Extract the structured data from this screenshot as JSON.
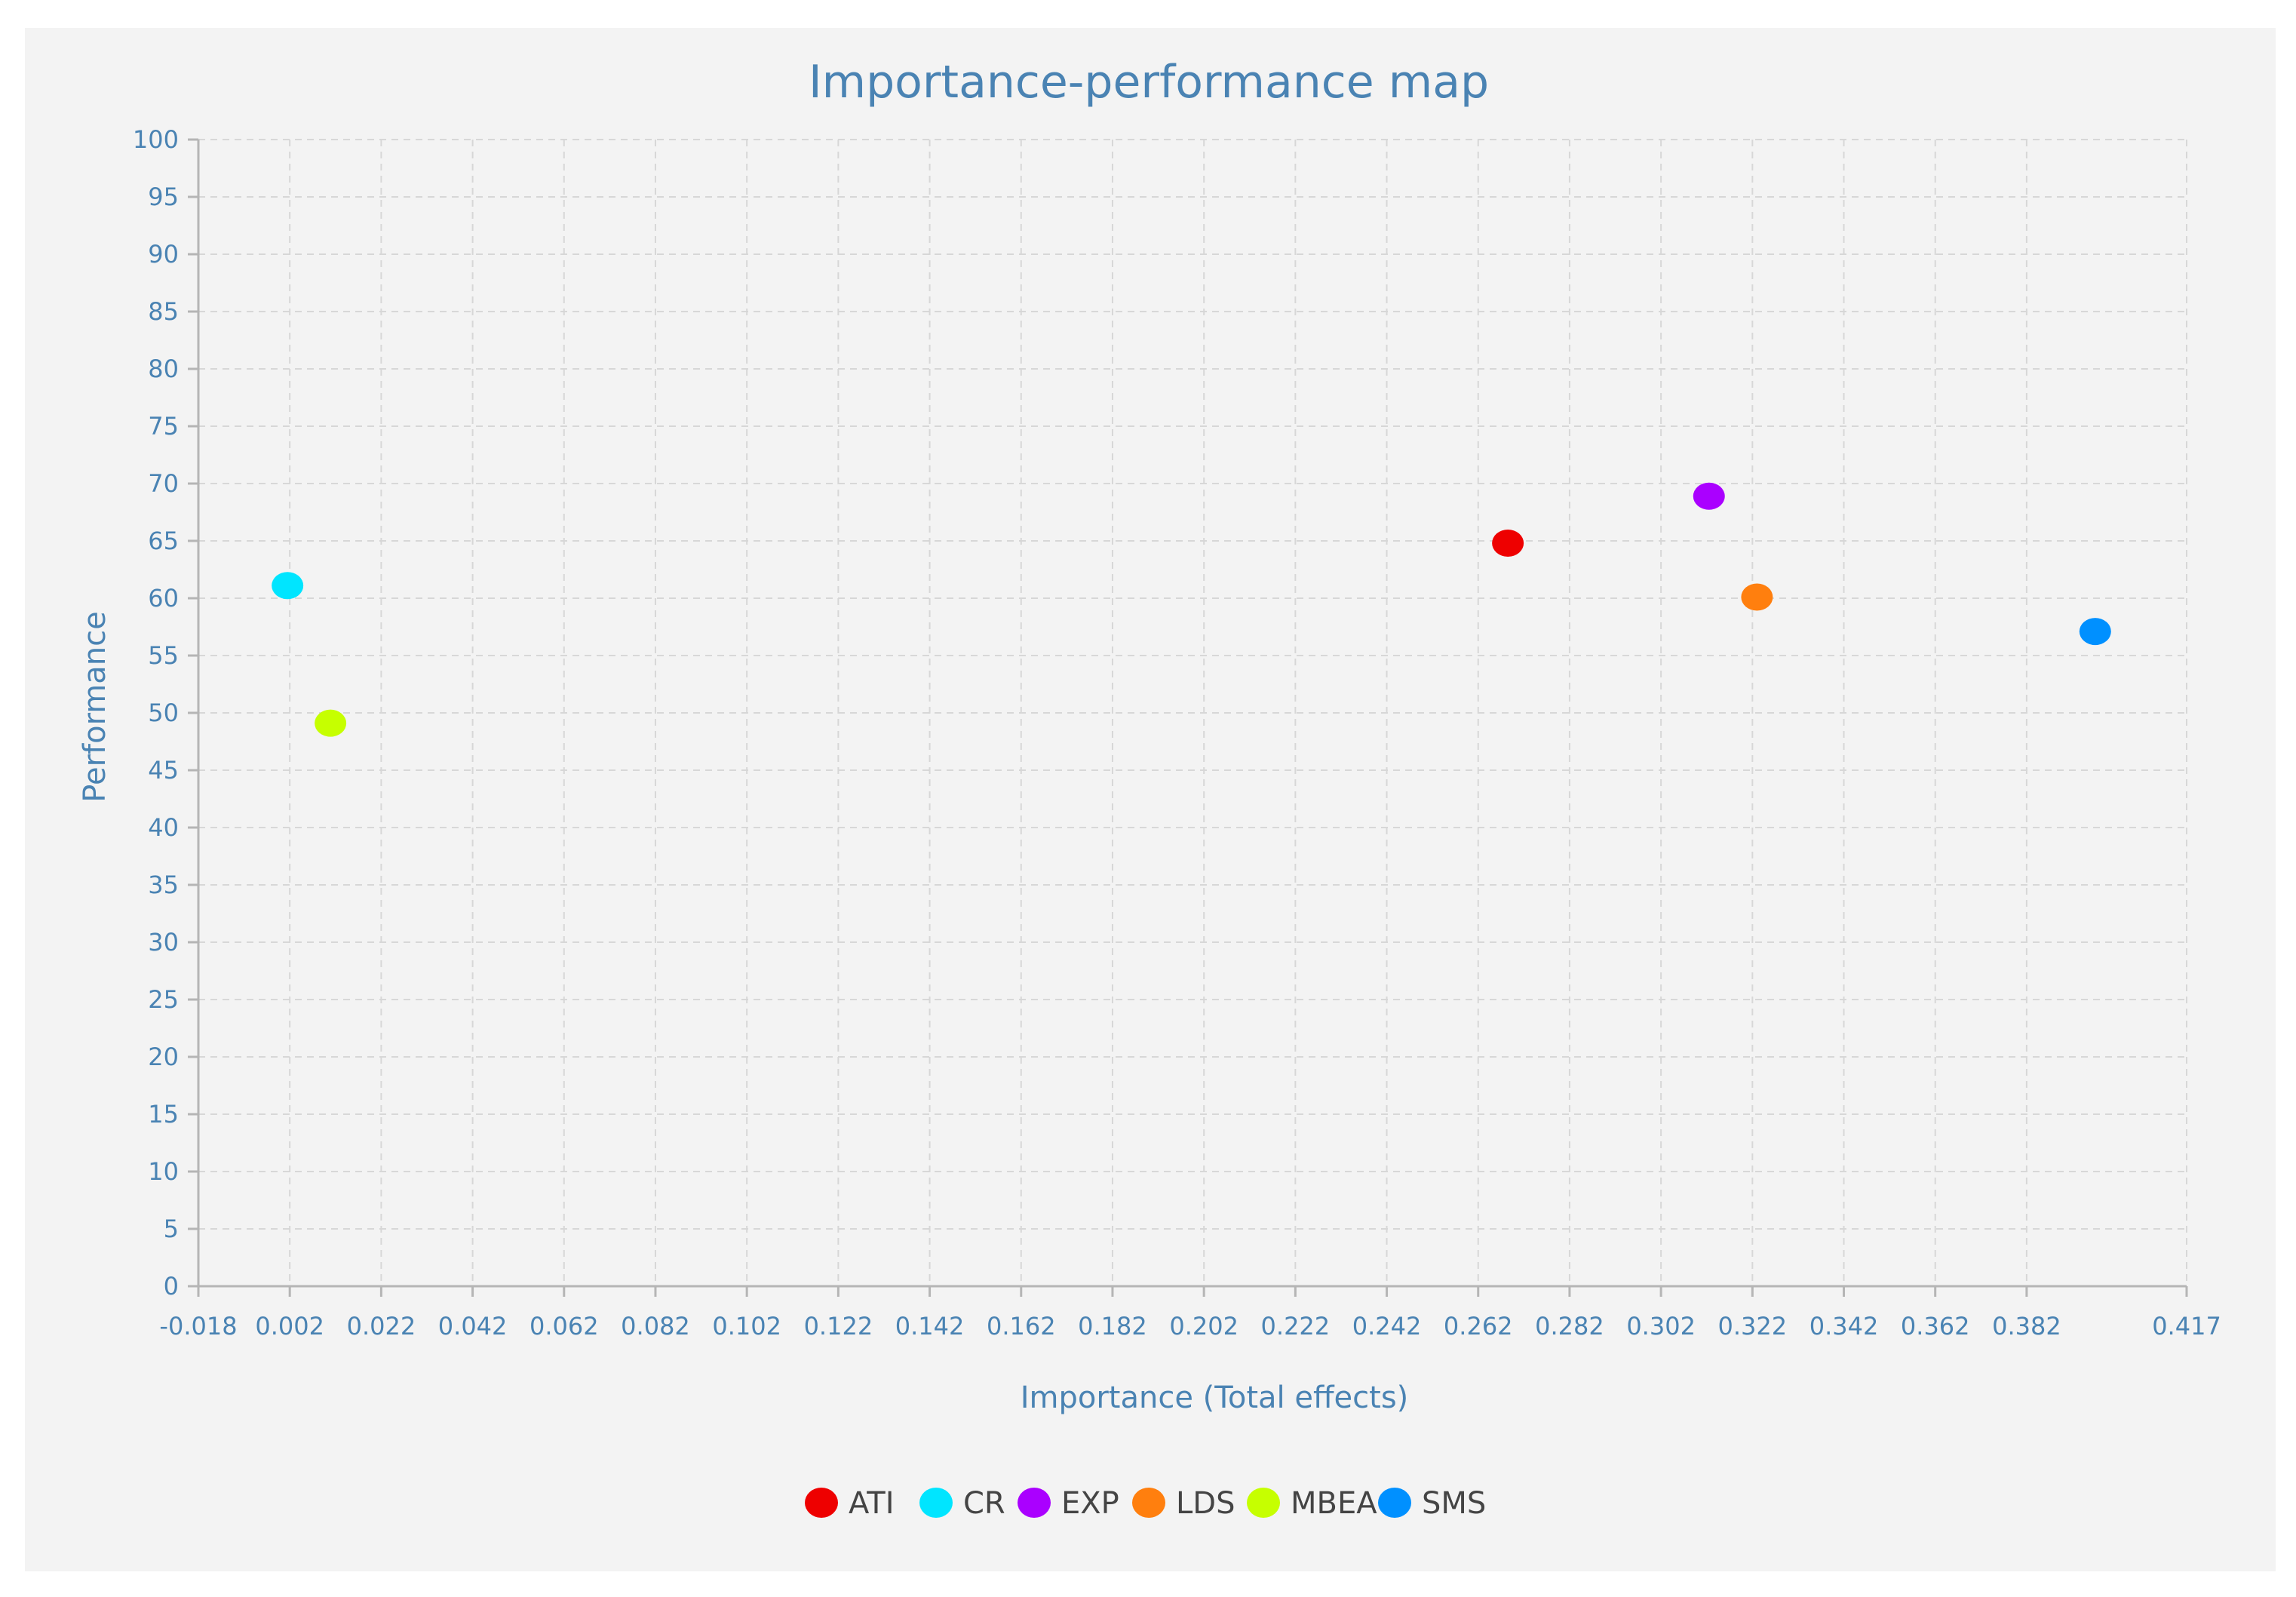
{
  "chart_data": {
    "type": "scatter",
    "title": "Importance-performance map",
    "xlabel": "Importance (Total effects)",
    "ylabel": "Performance",
    "xlim": [
      -0.018,
      0.417
    ],
    "ylim": [
      0,
      100
    ],
    "x_ticks": [
      "-0.018",
      "0.002",
      "0.022",
      "0.042",
      "0.062",
      "0.082",
      "0.102",
      "0.122",
      "0.142",
      "0.162",
      "0.182",
      "0.202",
      "0.222",
      "0.242",
      "0.262",
      "0.282",
      "0.302",
      "0.322",
      "0.342",
      "0.362",
      "0.382",
      "0.417"
    ],
    "y_ticks": [
      "0",
      "5",
      "10",
      "15",
      "20",
      "25",
      "30",
      "35",
      "40",
      "45",
      "50",
      "55",
      "60",
      "65",
      "70",
      "75",
      "80",
      "85",
      "90",
      "95",
      "100"
    ],
    "grid": true,
    "legend_position": "bottom",
    "series": [
      {
        "name": "ATI",
        "color": "#ee0000",
        "x": 0.2685,
        "y": 64.8
      },
      {
        "name": "CR",
        "color": "#00e5ff",
        "x": 0.0015,
        "y": 61.1
      },
      {
        "name": "EXP",
        "color": "#aa00ff",
        "x": 0.3125,
        "y": 68.9
      },
      {
        "name": "LDS",
        "color": "#ff7f0e",
        "x": 0.323,
        "y": 60.1
      },
      {
        "name": "MBEA",
        "color": "#c6ff00",
        "x": 0.0109,
        "y": 49.1
      },
      {
        "name": "SMS",
        "color": "#0090ff",
        "x": 0.397,
        "y": 57.1
      }
    ]
  }
}
